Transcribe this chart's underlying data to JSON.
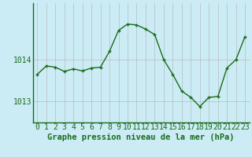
{
  "x": [
    0,
    1,
    2,
    3,
    4,
    5,
    6,
    7,
    8,
    9,
    10,
    11,
    12,
    13,
    14,
    15,
    16,
    17,
    18,
    19,
    20,
    21,
    22,
    23
  ],
  "y": [
    1013.65,
    1013.85,
    1013.82,
    1013.72,
    1013.78,
    1013.73,
    1013.8,
    1013.82,
    1014.2,
    1014.7,
    1014.85,
    1014.83,
    1014.73,
    1014.6,
    1014.0,
    1013.65,
    1013.25,
    1013.1,
    1012.88,
    1013.1,
    1013.12,
    1013.8,
    1014.0,
    1014.55
  ],
  "line_color": "#1a6b1a",
  "marker_color": "#1a6b1a",
  "bg_color": "#ccecf5",
  "grid_color": "#b0b0b0",
  "plot_bg": "#ccecf5",
  "xlabel": "Graphe pression niveau de la mer (hPa)",
  "ylabel_ticks": [
    1013,
    1014
  ],
  "ylim": [
    1012.5,
    1015.35
  ],
  "xlim": [
    -0.5,
    23.5
  ],
  "xlabel_fontsize": 7.5,
  "tick_fontsize": 7
}
